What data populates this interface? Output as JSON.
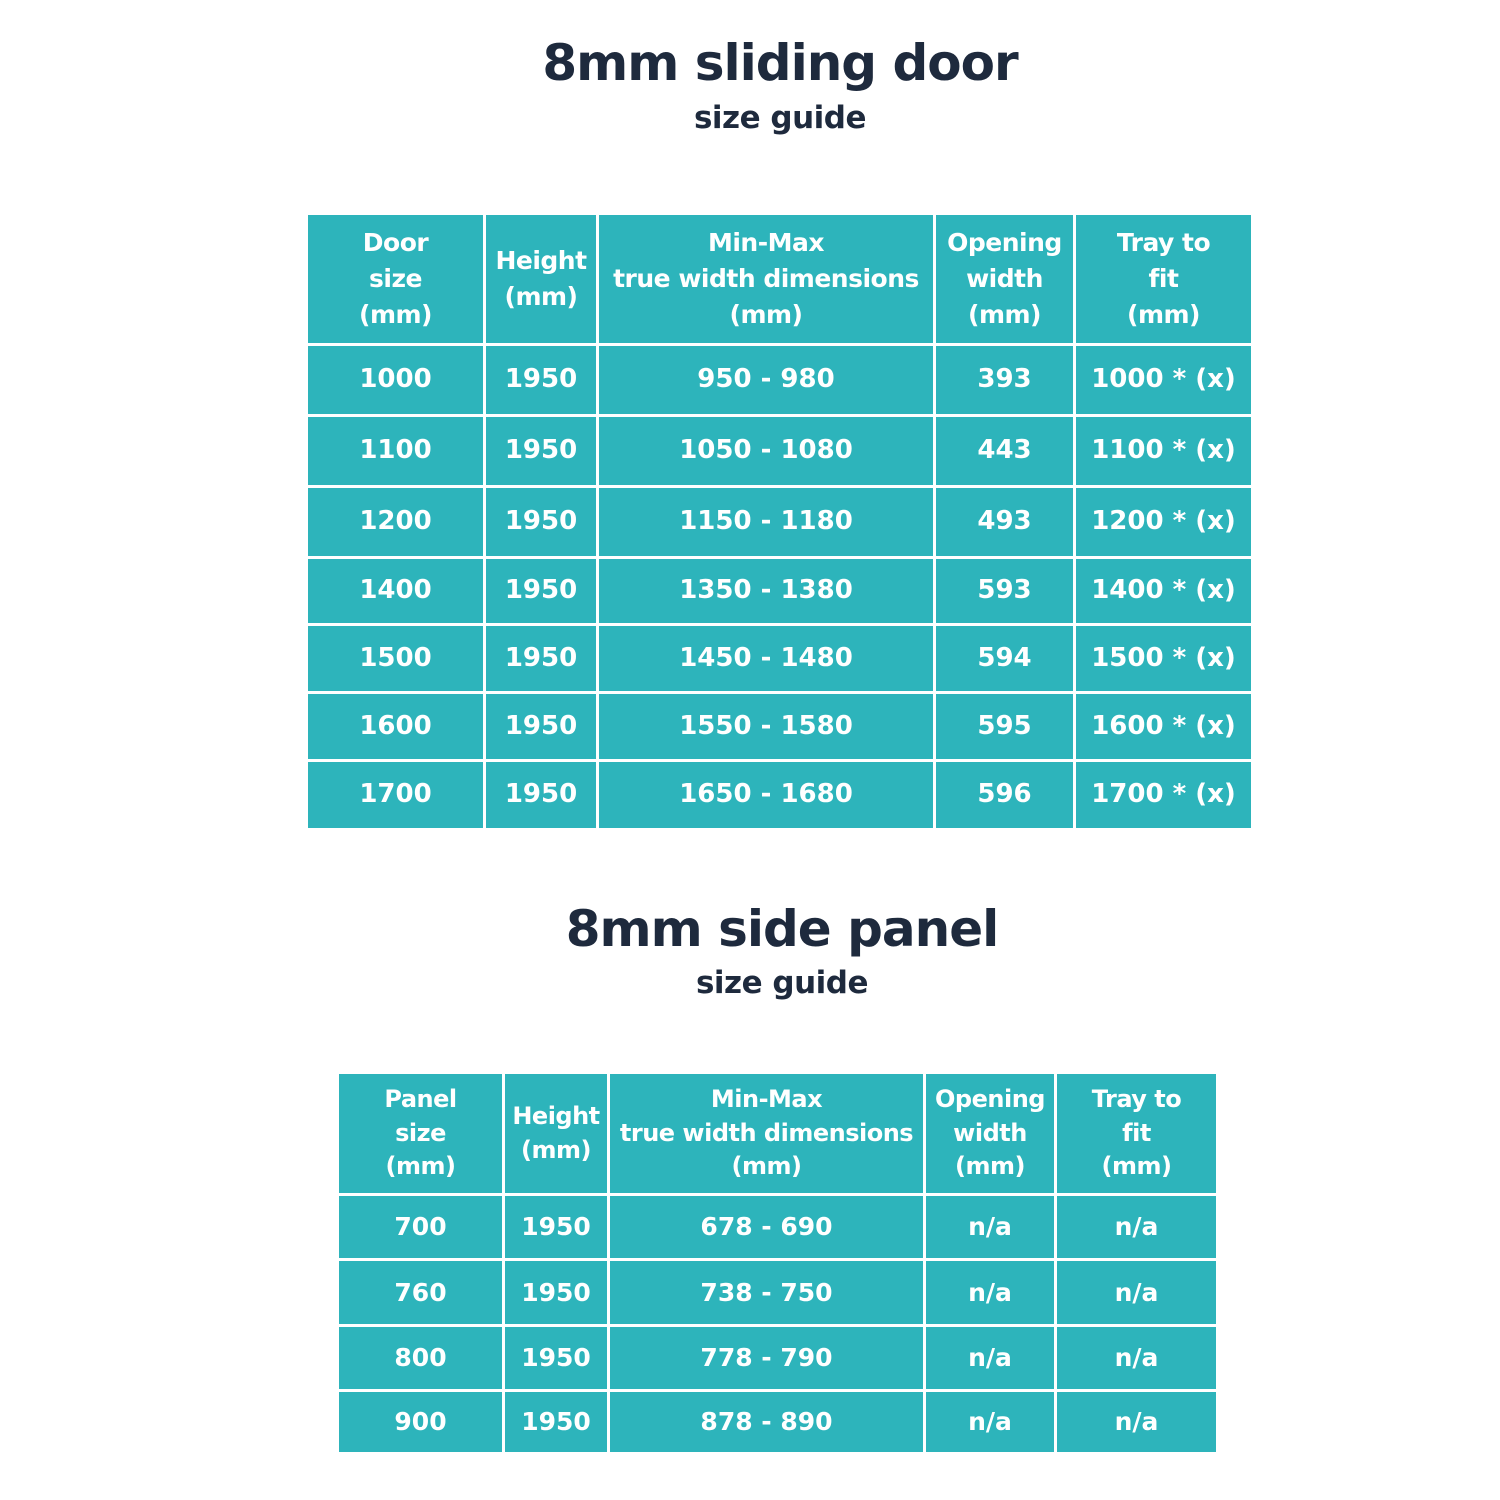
{
  "door": {
    "title": "8mm sliding door",
    "subtitle": "size guide",
    "headers": [
      "Door\nsize\n(mm)",
      "Height\n(mm)",
      "Min-Max\ntrue width dimensions\n(mm)",
      "Opening\nwidth\n(mm)",
      "Tray to\nfit\n(mm)"
    ],
    "rows": [
      [
        "1000",
        "1950",
        "950 - 980",
        "393",
        "1000 * (x)"
      ],
      [
        "1100",
        "1950",
        "1050 - 1080",
        "443",
        "1100 * (x)"
      ],
      [
        "1200",
        "1950",
        "1150 - 1180",
        "493",
        "1200 * (x)"
      ],
      [
        "1400",
        "1950",
        "1350 - 1380",
        "593",
        "1400 * (x)"
      ],
      [
        "1500",
        "1950",
        "1450 - 1480",
        "594",
        "1500 * (x)"
      ],
      [
        "1600",
        "1950",
        "1550 - 1580",
        "595",
        "1600 * (x)"
      ],
      [
        "1700",
        "1950",
        "1650 - 1680",
        "596",
        "1700 * (x)"
      ]
    ]
  },
  "panel": {
    "title": "8mm side panel",
    "subtitle": "size guide",
    "headers": [
      "Panel\nsize\n(mm)",
      "Height\n(mm)",
      "Min-Max\ntrue width dimensions\n(mm)",
      "Opening\nwidth\n(mm)",
      "Tray to\nfit\n(mm)"
    ],
    "rows": [
      [
        "700",
        "1950",
        "678 - 690",
        "n/a",
        "n/a"
      ],
      [
        "760",
        "1950",
        "738 - 750",
        "n/a",
        "n/a"
      ],
      [
        "800",
        "1950",
        "778 - 790",
        "n/a",
        "n/a"
      ],
      [
        "900",
        "1950",
        "878 - 890",
        "n/a",
        "n/a"
      ]
    ]
  },
  "colors": {
    "cell": "#2db4bb",
    "text": "#ffffff",
    "title": "#1e2a3d"
  }
}
